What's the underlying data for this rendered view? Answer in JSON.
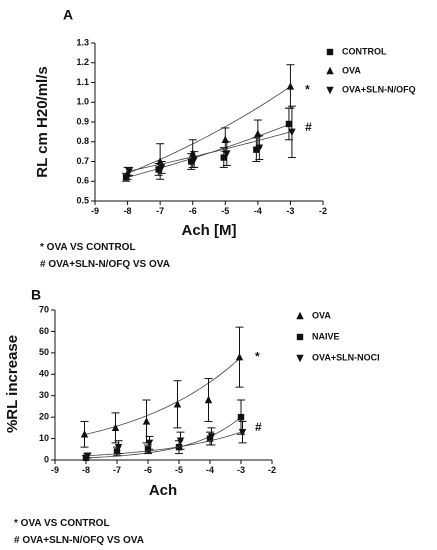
{
  "chart_data": [
    {
      "type": "scatter",
      "panel_label": "A",
      "xlabel": "Ach [M]",
      "ylabel": "RL cm H20/ml/s",
      "xlim": [
        -9,
        -2
      ],
      "ylim": [
        0.5,
        1.3
      ],
      "x_ticks": [
        "-9",
        "-8",
        "-7",
        "-6",
        "-5",
        "-4",
        "-3",
        "-2"
      ],
      "y_ticks": [
        "0.5",
        "0.6",
        "0.7",
        "0.8",
        "0.9",
        "1.0",
        "1.1",
        "1.2",
        "1.3"
      ],
      "legend_position": "top-right",
      "grid": false,
      "series": [
        {
          "name": "CONTROL",
          "marker": "square",
          "x": [
            -8,
            -7,
            -6,
            -5,
            -4,
            -3
          ],
          "y": [
            0.62,
            0.66,
            0.7,
            0.72,
            0.76,
            0.89
          ],
          "err": [
            0.02,
            0.03,
            0.04,
            0.05,
            0.06,
            0.08
          ]
        },
        {
          "name": "OVA",
          "marker": "triangle-up",
          "x": [
            -8,
            -7,
            -6,
            -5,
            -4,
            -3
          ],
          "y": [
            0.64,
            0.7,
            0.74,
            0.81,
            0.84,
            1.08
          ],
          "err": [
            0.03,
            0.09,
            0.07,
            0.06,
            0.07,
            0.11
          ]
        },
        {
          "name": "OVA+SLN-N/OFQ",
          "marker": "triangle-down",
          "x": [
            -8,
            -7,
            -6,
            -5,
            -4,
            -3
          ],
          "y": [
            0.65,
            0.67,
            0.71,
            0.74,
            0.77,
            0.85
          ],
          "err": [
            0.02,
            0.03,
            0.04,
            0.06,
            0.06,
            0.13
          ]
        }
      ],
      "annotations": [
        {
          "text": "*",
          "x": -2.55,
          "y": 1.06
        },
        {
          "text": "#",
          "x": -2.55,
          "y": 0.87
        }
      ],
      "notes": [
        "* OVA VS CONTROL",
        "# OVA+SLN-N/OFQ VS OVA"
      ]
    },
    {
      "type": "scatter",
      "panel_label": "B",
      "xlabel": "Ach",
      "ylabel": "%RL increase",
      "xlim": [
        -9,
        -2
      ],
      "ylim": [
        0,
        70
      ],
      "x_ticks": [
        "-9",
        "-8",
        "-7",
        "-6",
        "-5",
        "-4",
        "-3",
        "-2"
      ],
      "y_ticks": [
        "0",
        "10",
        "20",
        "30",
        "40",
        "50",
        "60",
        "70"
      ],
      "legend_position": "top-right",
      "grid": false,
      "series": [
        {
          "name": "OVA",
          "marker": "triangle-up",
          "x": [
            -8,
            -7,
            -6,
            -5,
            -4,
            -3
          ],
          "y": [
            12,
            15,
            18,
            26,
            28,
            48
          ],
          "err": [
            6,
            7,
            10,
            11,
            10,
            14
          ]
        },
        {
          "name": "NAIVE",
          "marker": "square",
          "x": [
            -8,
            -7,
            -6,
            -5,
            -4,
            -3
          ],
          "y": [
            1,
            4,
            5,
            6,
            10,
            20
          ],
          "err": [
            1,
            2,
            2,
            3,
            3,
            8
          ]
        },
        {
          "name": "OVA+SLN-NOCI",
          "marker": "triangle-down",
          "x": [
            -8,
            -7,
            -6,
            -5,
            -4,
            -3
          ],
          "y": [
            2,
            6,
            8,
            9,
            11,
            13
          ],
          "err": [
            1,
            3,
            3,
            4,
            4,
            5
          ]
        }
      ],
      "annotations": [
        {
          "text": "*",
          "x": -2.55,
          "y": 48
        },
        {
          "text": "#",
          "x": -2.55,
          "y": 15
        }
      ],
      "notes": [
        "* OVA VS CONTROL",
        "# OVA+SLN-N/OFQ VS OVA"
      ]
    }
  ]
}
